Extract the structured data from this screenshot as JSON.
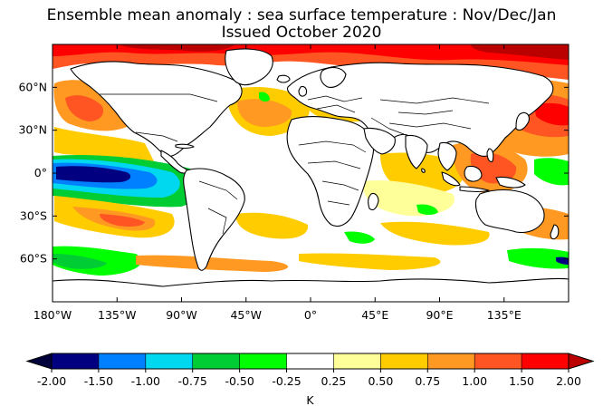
{
  "title": {
    "line1": "Ensemble mean anomaly : sea surface temperature : Nov/Dec/Jan",
    "line2": "Issued October 2020"
  },
  "map": {
    "projection": "equirectangular",
    "lon_range": [
      -180,
      180
    ],
    "lat_range": [
      -90,
      90
    ],
    "lat_ticks": [
      {
        "value": 60,
        "label": "60°N"
      },
      {
        "value": 30,
        "label": "30°N"
      },
      {
        "value": 0,
        "label": "0°"
      },
      {
        "value": -30,
        "label": "30°S"
      },
      {
        "value": -60,
        "label": "60°S"
      }
    ],
    "lon_ticks": [
      {
        "value": -180,
        "label": "180°W"
      },
      {
        "value": -135,
        "label": "135°W"
      },
      {
        "value": -90,
        "label": "90°W"
      },
      {
        "value": -45,
        "label": "45°W"
      },
      {
        "value": 0,
        "label": "0°"
      },
      {
        "value": 45,
        "label": "45°E"
      },
      {
        "value": 90,
        "label": "90°E"
      },
      {
        "value": 135,
        "label": "135°E"
      }
    ],
    "land_color": "#ffffff",
    "coast_color": "#000000"
  },
  "colorbar": {
    "unit": "K",
    "bounds": [
      "-2.00",
      "-1.50",
      "-1.00",
      "-0.75",
      "-0.50",
      "-0.25",
      "0.25",
      "0.50",
      "0.75",
      "1.00",
      "1.50",
      "2.00"
    ],
    "colors": [
      "#000080",
      "#0080ff",
      "#00d8f0",
      "#00cc33",
      "#00ff00",
      "#ffffff",
      "#ffff99",
      "#ffcc00",
      "#ff9922",
      "#ff5522",
      "#ff0000"
    ],
    "under_color": "#00003a",
    "over_color": "#bb0000"
  }
}
